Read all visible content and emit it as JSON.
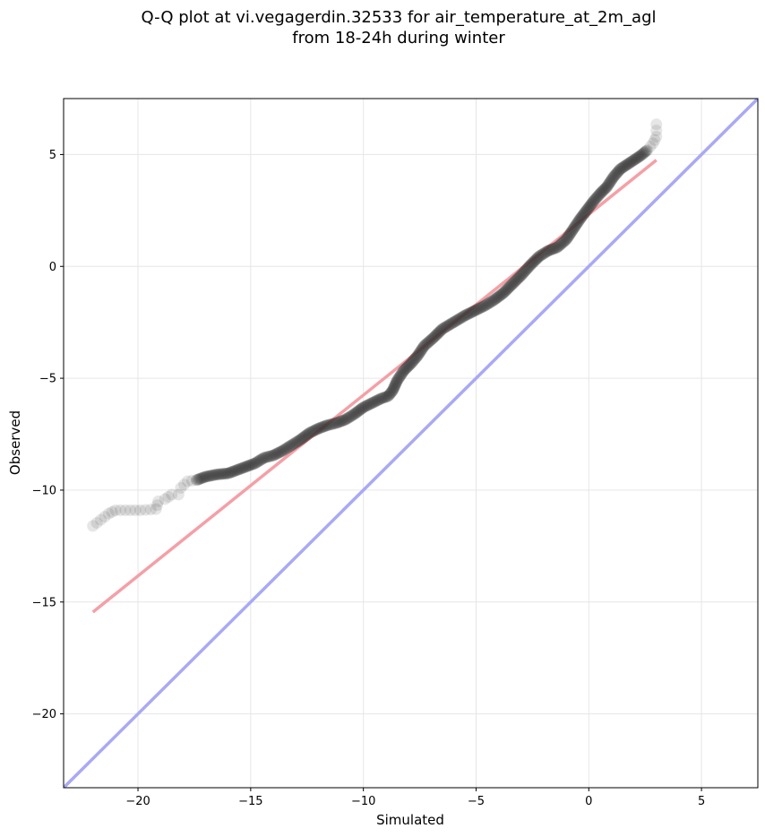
{
  "chart_data": {
    "type": "scatter",
    "title_line1": "Q-Q plot at vi.vegagerdin.32533 for air_temperature_at_2m_agl",
    "title_line2": "from 18-24h during winter",
    "xlabel": "Simulated",
    "ylabel": "Observed",
    "xlim": [
      -23.3,
      7.5
    ],
    "ylim": [
      -23.3,
      7.5
    ],
    "xticks": [
      -20,
      -15,
      -10,
      -5,
      0,
      5
    ],
    "yticks": [
      -20,
      -15,
      -10,
      -5,
      0,
      5
    ],
    "xtick_labels": [
      "−20",
      "−15",
      "−10",
      "−5",
      "0",
      "5"
    ],
    "ytick_labels": [
      "−20",
      "−15",
      "−10",
      "−5",
      "0",
      "5"
    ],
    "grid": true,
    "colors": {
      "points": "#333333",
      "fit_line": "#f4a0a6",
      "identity_line": "#a9a9f4",
      "grid": "#e6e6e6"
    },
    "identity_line": {
      "x": [
        -23.3,
        7.5
      ],
      "y": [
        -23.3,
        7.5
      ]
    },
    "fit_line": {
      "x": [
        -22.0,
        3.0
      ],
      "y": [
        -15.45,
        4.75
      ]
    },
    "quantile_curve": [
      [
        -22.0,
        -11.6
      ],
      [
        -21.3,
        -11.05
      ],
      [
        -21.0,
        -10.9
      ],
      [
        -19.9,
        -10.9
      ],
      [
        -19.2,
        -10.85
      ],
      [
        -19.1,
        -10.5
      ],
      [
        -18.8,
        -10.4
      ],
      [
        -18.5,
        -10.2
      ],
      [
        -18.2,
        -10.2
      ],
      [
        -18.1,
        -9.9
      ],
      [
        -17.8,
        -9.6
      ],
      [
        -17.4,
        -9.55
      ],
      [
        -17.0,
        -9.4
      ],
      [
        -16.5,
        -9.3
      ],
      [
        -16.0,
        -9.25
      ],
      [
        -15.6,
        -9.1
      ],
      [
        -15.2,
        -8.95
      ],
      [
        -14.8,
        -8.8
      ],
      [
        -14.4,
        -8.55
      ],
      [
        -14.0,
        -8.45
      ],
      [
        -13.6,
        -8.25
      ],
      [
        -13.2,
        -8.0
      ],
      [
        -12.8,
        -7.75
      ],
      [
        -12.4,
        -7.45
      ],
      [
        -12.0,
        -7.25
      ],
      [
        -11.6,
        -7.1
      ],
      [
        -11.2,
        -7.0
      ],
      [
        -10.8,
        -6.85
      ],
      [
        -10.4,
        -6.6
      ],
      [
        -10.0,
        -6.3
      ],
      [
        -9.6,
        -6.1
      ],
      [
        -9.2,
        -5.9
      ],
      [
        -8.9,
        -5.8
      ],
      [
        -8.7,
        -5.55
      ],
      [
        -8.5,
        -5.1
      ],
      [
        -8.2,
        -4.65
      ],
      [
        -7.9,
        -4.35
      ],
      [
        -7.6,
        -4.0
      ],
      [
        -7.3,
        -3.55
      ],
      [
        -6.9,
        -3.2
      ],
      [
        -6.5,
        -2.8
      ],
      [
        -6.0,
        -2.5
      ],
      [
        -5.5,
        -2.2
      ],
      [
        -5.0,
        -1.95
      ],
      [
        -4.6,
        -1.75
      ],
      [
        -4.2,
        -1.5
      ],
      [
        -3.8,
        -1.2
      ],
      [
        -3.4,
        -0.8
      ],
      [
        -3.0,
        -0.4
      ],
      [
        -2.6,
        0.05
      ],
      [
        -2.2,
        0.45
      ],
      [
        -1.8,
        0.7
      ],
      [
        -1.4,
        0.85
      ],
      [
        -1.0,
        1.2
      ],
      [
        -0.7,
        1.65
      ],
      [
        -0.4,
        2.1
      ],
      [
        -0.1,
        2.5
      ],
      [
        0.2,
        2.9
      ],
      [
        0.5,
        3.25
      ],
      [
        0.8,
        3.55
      ],
      [
        1.1,
        4.0
      ],
      [
        1.4,
        4.35
      ],
      [
        1.7,
        4.55
      ],
      [
        2.0,
        4.75
      ],
      [
        2.3,
        4.95
      ],
      [
        2.6,
        5.2
      ],
      [
        2.85,
        5.5
      ],
      [
        3.0,
        5.8
      ],
      [
        3.0,
        6.35
      ]
    ]
  }
}
